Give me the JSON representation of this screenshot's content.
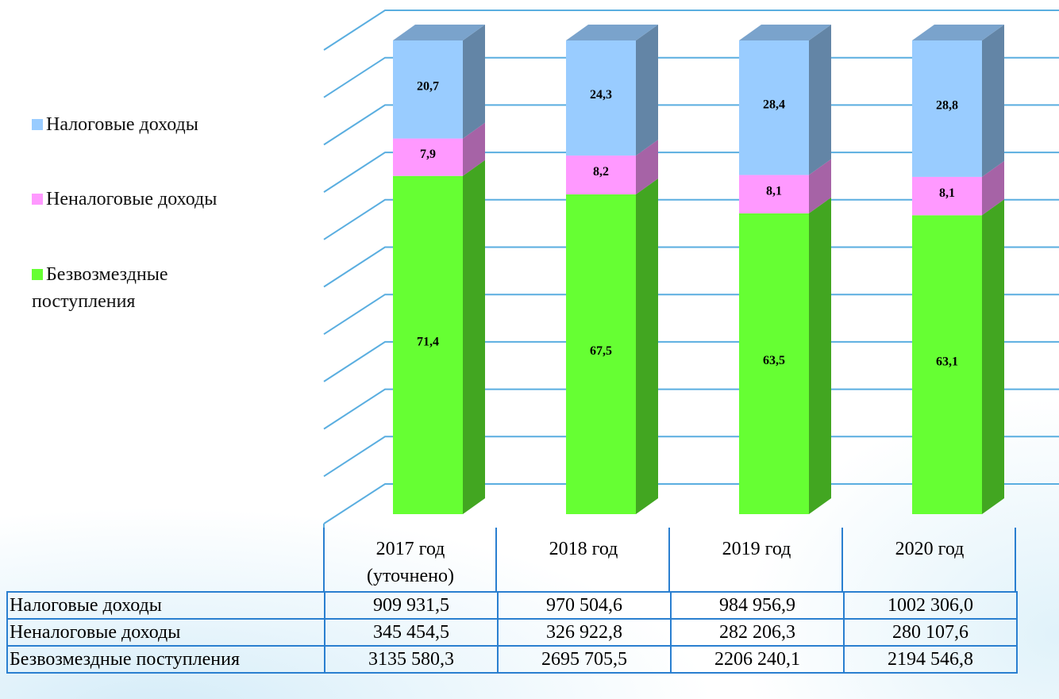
{
  "chart_data": {
    "type": "bar",
    "stacked": true,
    "categories": [
      "2017 год (уточнено)",
      "2018 год",
      "2019 год",
      "2020 год"
    ],
    "series": [
      {
        "name": "Безвозмездные поступления",
        "color": "#66ff33",
        "values": [
          71.4,
          67.5,
          63.5,
          63.1
        ],
        "value_labels": [
          "71,4",
          "67,5",
          "63,5",
          "63,1"
        ]
      },
      {
        "name": "Неналоговые доходы",
        "color": "#ff99ff",
        "values": [
          7.9,
          8.2,
          8.1,
          8.1
        ],
        "value_labels": [
          "7,9",
          "8,2",
          "8,1",
          "8,1"
        ]
      },
      {
        "name": "Налоговые доходы",
        "color": "#99ccff",
        "values": [
          20.7,
          24.3,
          28.4,
          28.8
        ],
        "value_labels": [
          "20,7",
          "24,3",
          "28,4",
          "28,8"
        ]
      }
    ],
    "ylim": [
      0,
      100
    ],
    "yticks": [
      0,
      10,
      20,
      30,
      40,
      50,
      60,
      70,
      80,
      90,
      100
    ],
    "grid": true,
    "legend": "left"
  },
  "table": {
    "rows": [
      [
        "Налоговые доходы",
        "909 931,5",
        "970 504,6",
        "984 956,9",
        "1002 306,0"
      ],
      [
        "Неналоговые доходы",
        "345 454,5",
        "326 922,8",
        "282 206,3",
        "280 107,6"
      ],
      [
        "Безвозмездные поступления",
        "3135 580,3",
        "2695 705,5",
        "2206 240,1",
        "2194 546,8"
      ]
    ]
  }
}
